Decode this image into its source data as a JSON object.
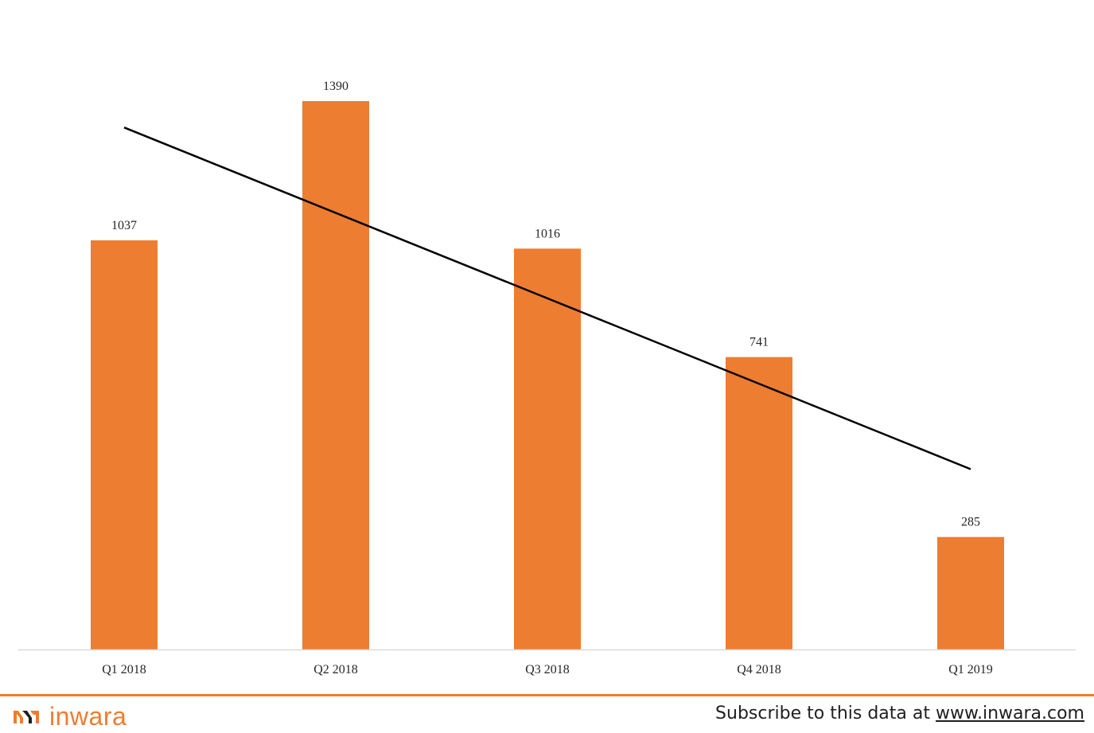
{
  "chart_data": {
    "type": "bar",
    "categories": [
      "Q1 2018",
      "Q2 2018",
      "Q3 2018",
      "Q4 2018",
      "Q1 2019"
    ],
    "values": [
      1037,
      1390,
      1016,
      741,
      285
    ],
    "data_labels": [
      "1037",
      "1390",
      "1016",
      "741",
      "285"
    ],
    "trendline": {
      "type": "linear",
      "start": 1323,
      "end": 457
    },
    "title": "",
    "xlabel": "",
    "ylabel": "",
    "ylim": [
      0,
      1400
    ],
    "grid": false,
    "legend": "none",
    "colors": {
      "bar": "#ed7d31",
      "trendline": "#000000",
      "axis": "#d9d9d9"
    }
  },
  "footer": {
    "brand": "inwara",
    "subscribe_prefix": "Subscribe to this data at ",
    "subscribe_link": "www.inwara.com",
    "accent_color": "#ed7d31",
    "logo_icon": "inwara-logo-icon"
  }
}
